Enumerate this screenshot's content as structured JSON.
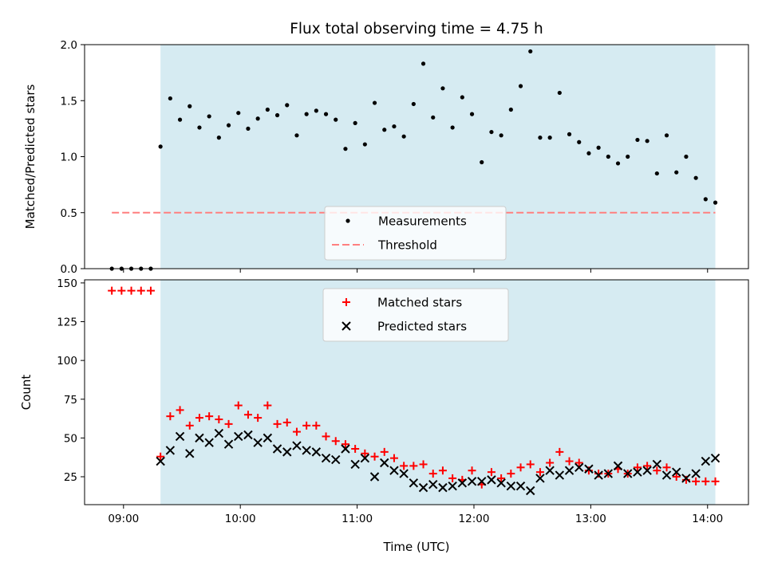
{
  "figure": {
    "title": "Flux total observing time = 4.75 h",
    "xlabel": "Time (UTC)",
    "x_tick_labels": [
      "09:00",
      "10:00",
      "11:00",
      "12:00",
      "13:00",
      "14:00"
    ]
  },
  "colors": {
    "shade": "#add8e6",
    "measurement": "#000000",
    "threshold": "#ff7f7f",
    "matched": "#ff0000",
    "predicted": "#000000"
  },
  "chart_data": [
    {
      "type": "scatter",
      "ylabel": "Matched/Predicted stars",
      "ylim": [
        0,
        2.0
      ],
      "xlim": [
        "08:40",
        "14:21"
      ],
      "x_ticks": [
        "09:00",
        "10:00",
        "11:00",
        "12:00",
        "13:00",
        "14:00"
      ],
      "y_ticks": [
        0.0,
        0.5,
        1.0,
        1.5,
        2.0
      ],
      "y_tick_labels": [
        "0.0",
        "0.5",
        "1.0",
        "1.5",
        "2.0"
      ],
      "shaded_interval": [
        "09:19",
        "14:04"
      ],
      "legend_position": "lower-center",
      "series": [
        {
          "name": "Measurements",
          "x": [
            "08:54",
            "08:59",
            "09:04",
            "09:09",
            "09:14",
            "09:19",
            "09:24",
            "09:29",
            "09:34",
            "09:39",
            "09:44",
            "09:49",
            "09:54",
            "09:59",
            "10:04",
            "10:09",
            "10:14",
            "10:19",
            "10:24",
            "10:29",
            "10:34",
            "10:39",
            "10:44",
            "10:49",
            "10:54",
            "10:59",
            "11:04",
            "11:09",
            "11:14",
            "11:19",
            "11:24",
            "11:29",
            "11:34",
            "11:39",
            "11:44",
            "11:49",
            "11:54",
            "11:59",
            "12:04",
            "12:09",
            "12:14",
            "12:19",
            "12:24",
            "12:29",
            "12:34",
            "12:39",
            "12:44",
            "12:49",
            "12:54",
            "12:59",
            "13:04",
            "13:09",
            "13:14",
            "13:19",
            "13:24",
            "13:29",
            "13:34",
            "13:39",
            "13:44",
            "13:49",
            "13:54",
            "13:59",
            "14:04"
          ],
          "y": [
            0.0,
            0.0,
            0.0,
            0.0,
            0.0,
            1.09,
            1.52,
            1.33,
            1.45,
            1.26,
            1.36,
            1.17,
            1.28,
            1.39,
            1.25,
            1.34,
            1.42,
            1.37,
            1.46,
            1.19,
            1.38,
            1.41,
            1.38,
            1.33,
            1.07,
            1.3,
            1.11,
            1.48,
            1.24,
            1.27,
            1.18,
            1.47,
            1.83,
            1.35,
            1.61,
            1.26,
            1.53,
            1.38,
            0.95,
            1.22,
            1.19,
            1.42,
            1.63,
            1.94,
            1.17,
            1.17,
            1.57,
            1.2,
            1.13,
            1.03,
            1.08,
            1.0,
            0.94,
            1.0,
            1.15,
            1.14,
            0.85,
            1.19,
            0.86,
            1.0,
            0.81,
            0.62,
            0.59
          ]
        },
        {
          "name": "Threshold",
          "x": [
            "08:54",
            "14:04"
          ],
          "y": [
            0.5,
            0.5
          ]
        }
      ]
    },
    {
      "type": "scatter",
      "ylabel": "Count",
      "ylim": [
        7,
        152
      ],
      "xlim": [
        "08:40",
        "14:21"
      ],
      "x_ticks": [
        "09:00",
        "10:00",
        "11:00",
        "12:00",
        "13:00",
        "14:00"
      ],
      "y_ticks": [
        25,
        50,
        75,
        100,
        125,
        150
      ],
      "shaded_interval": [
        "09:19",
        "14:04"
      ],
      "legend_position": "upper-center",
      "series": [
        {
          "name": "Matched stars",
          "x": [
            "08:54",
            "08:59",
            "09:04",
            "09:09",
            "09:14",
            "09:19",
            "09:24",
            "09:29",
            "09:34",
            "09:39",
            "09:44",
            "09:49",
            "09:54",
            "09:59",
            "10:04",
            "10:09",
            "10:14",
            "10:19",
            "10:24",
            "10:29",
            "10:34",
            "10:39",
            "10:44",
            "10:49",
            "10:54",
            "10:59",
            "11:04",
            "11:09",
            "11:14",
            "11:19",
            "11:24",
            "11:29",
            "11:34",
            "11:39",
            "11:44",
            "11:49",
            "11:54",
            "11:59",
            "12:04",
            "12:09",
            "12:14",
            "12:19",
            "12:24",
            "12:29",
            "12:34",
            "12:39",
            "12:44",
            "12:49",
            "12:54",
            "12:59",
            "13:04",
            "13:09",
            "13:14",
            "13:19",
            "13:24",
            "13:29",
            "13:34",
            "13:39",
            "13:44",
            "13:49",
            "13:54",
            "13:59",
            "14:04"
          ],
          "y": [
            145,
            145,
            145,
            145,
            145,
            38,
            64,
            68,
            58,
            63,
            64,
            62,
            59,
            71,
            65,
            63,
            71,
            59,
            60,
            54,
            58,
            58,
            51,
            48,
            46,
            43,
            40,
            38,
            41,
            37,
            32,
            32,
            33,
            27,
            29,
            24,
            23,
            29,
            20,
            28,
            24,
            27,
            31,
            33,
            28,
            34,
            41,
            35,
            34,
            29,
            27,
            27,
            30,
            27,
            31,
            32,
            29,
            31,
            25,
            23,
            22,
            22,
            22
          ]
        },
        {
          "name": "Predicted stars",
          "x": [
            "09:19",
            "09:24",
            "09:29",
            "09:34",
            "09:39",
            "09:44",
            "09:49",
            "09:54",
            "09:59",
            "10:04",
            "10:09",
            "10:14",
            "10:19",
            "10:24",
            "10:29",
            "10:34",
            "10:39",
            "10:44",
            "10:49",
            "10:54",
            "10:59",
            "11:04",
            "11:09",
            "11:14",
            "11:19",
            "11:24",
            "11:29",
            "11:34",
            "11:39",
            "11:44",
            "11:49",
            "11:54",
            "11:59",
            "12:04",
            "12:09",
            "12:14",
            "12:19",
            "12:24",
            "12:29",
            "12:34",
            "12:39",
            "12:44",
            "12:49",
            "12:54",
            "12:59",
            "13:04",
            "13:09",
            "13:14",
            "13:19",
            "13:24",
            "13:29",
            "13:34",
            "13:39",
            "13:44",
            "13:49",
            "13:54",
            "13:59",
            "14:04"
          ],
          "y": [
            35,
            42,
            51,
            40,
            50,
            47,
            53,
            46,
            51,
            52,
            47,
            50,
            43,
            41,
            45,
            42,
            41,
            37,
            36,
            43,
            33,
            37,
            25,
            34,
            29,
            27,
            21,
            18,
            20,
            18,
            19,
            21,
            22,
            22,
            23,
            21,
            19,
            19,
            16,
            24,
            29,
            26,
            29,
            31,
            30,
            26,
            27,
            32,
            27,
            28,
            29,
            33,
            26,
            28,
            24,
            27,
            35,
            37
          ]
        }
      ]
    }
  ]
}
